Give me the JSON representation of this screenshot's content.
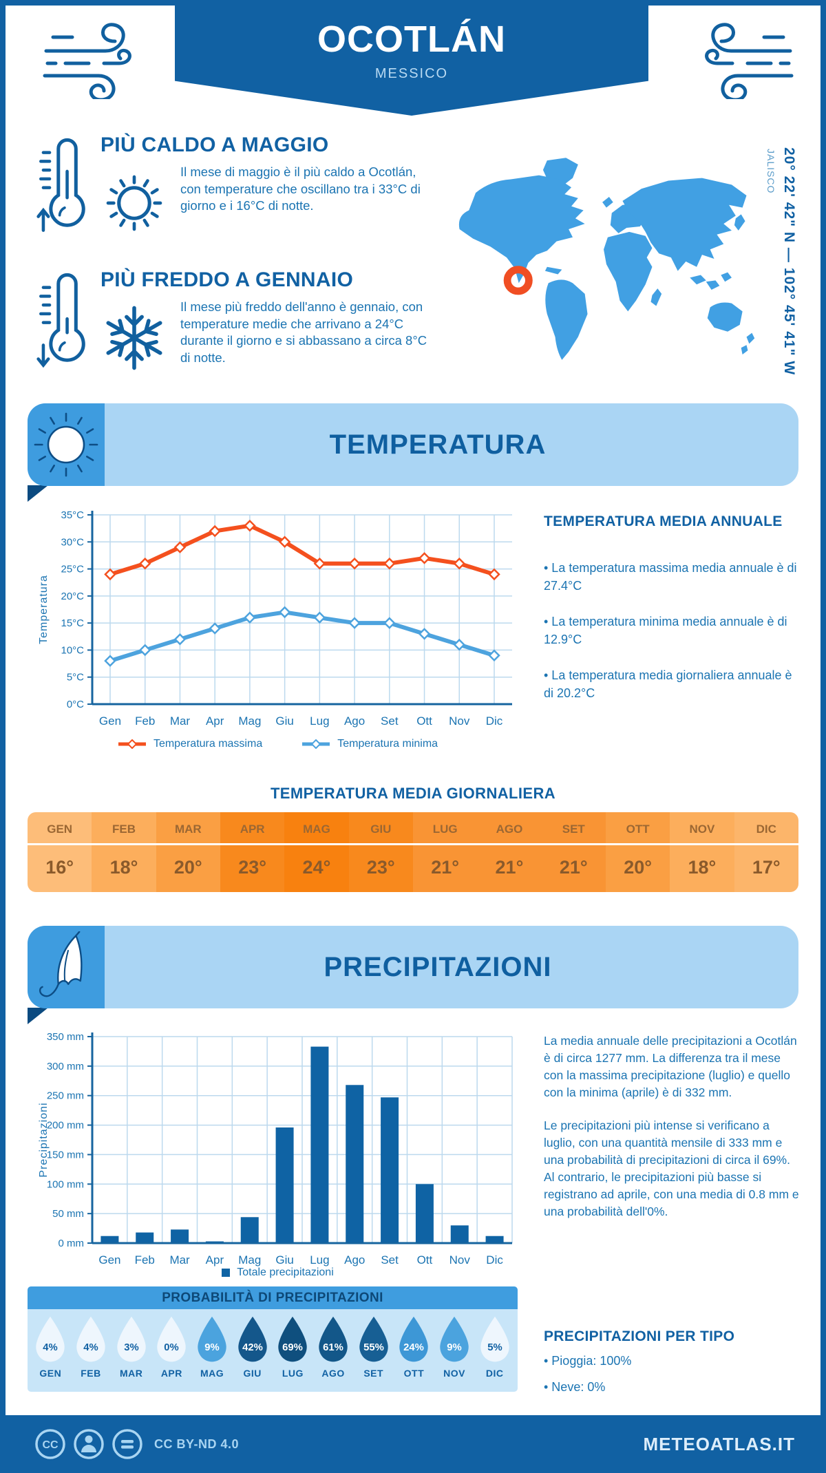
{
  "header": {
    "title": "OCOTLÁN",
    "subtitle": "MESSICO"
  },
  "highlights": {
    "hot": {
      "title": "PIÙ CALDO A MAGGIO",
      "text": "Il mese di maggio è il più caldo a Ocotlán, con temperature che oscillano tra i 33°C di giorno e i 16°C di notte."
    },
    "cold": {
      "title": "PIÙ FREDDO A GENNAIO",
      "text": "Il mese più freddo dell'anno è gennaio, con temperature medie che arrivano a 24°C durante il giorno e si abbassano a circa 8°C di notte."
    }
  },
  "map": {
    "coordinates": "20° 22' 42\" N — 102° 45' 41\" W",
    "region": "JALISCO",
    "marker_color": "#f04e23",
    "land_color": "#41a0e3"
  },
  "temperature_section": {
    "banner": "TEMPERATURA",
    "annual": {
      "title": "TEMPERATURA MEDIA ANNUALE",
      "bullets": [
        "• La temperatura massima media annuale è di 27.4°C",
        "• La temperatura minima media annuale è di 12.9°C",
        "• La temperatura media giornaliera annuale è di 20.2°C"
      ]
    },
    "daily_title": "TEMPERATURA MEDIA GIORNALIERA",
    "daily": {
      "months": [
        "GEN",
        "FEB",
        "MAR",
        "APR",
        "MAG",
        "GIU",
        "LUG",
        "AGO",
        "SET",
        "OTT",
        "NOV",
        "DIC"
      ],
      "values": [
        "16°",
        "18°",
        "20°",
        "23°",
        "24°",
        "23°",
        "21°",
        "21°",
        "21°",
        "20°",
        "18°",
        "17°"
      ],
      "cell_colors": [
        "#fdbd79",
        "#fcae5c",
        "#fa9f43",
        "#f8891d",
        "#f8810f",
        "#f8891d",
        "#f99434",
        "#f99434",
        "#f99434",
        "#fa9f43",
        "#fcae5c",
        "#fcb56a"
      ]
    }
  },
  "precipitation_section": {
    "banner": "PRECIPITAZIONI",
    "paragraphs": [
      "La media annuale delle precipitazioni a Ocotlán è di circa 1277 mm. La differenza tra il mese con la massima precipitazione (luglio) e quello con la minima (aprile) è di 332 mm.",
      "Le precipitazioni più intense si verificano a luglio, con una quantità mensile di 333 mm e una probabilità di precipitazioni di circa il 69%. Al contrario, le precipitazioni più basse si registrano ad aprile, con una media di 0.8 mm e una probabilità dell'0%."
    ],
    "probability": {
      "title": "PROBABILITÀ DI PRECIPITAZIONI",
      "months": [
        "GEN",
        "FEB",
        "MAR",
        "APR",
        "MAG",
        "GIU",
        "LUG",
        "AGO",
        "SET",
        "OTT",
        "NOV",
        "DIC"
      ],
      "values": [
        4,
        4,
        3,
        0,
        9,
        42,
        69,
        61,
        55,
        24,
        9,
        5
      ],
      "drop_colors": [
        "#eef6fd",
        "#eef6fd",
        "#eef6fd",
        "#eef6fd",
        "#4ba3de",
        "#14578b",
        "#0f4f7e",
        "#135789",
        "#175f94",
        "#3d97d6",
        "#4ba3de",
        "#eef6fd"
      ],
      "drop_text_colors": [
        "#1161a3",
        "#1161a3",
        "#1161a3",
        "#1161a3",
        "#ffffff",
        "#ffffff",
        "#ffffff",
        "#ffffff",
        "#ffffff",
        "#ffffff",
        "#ffffff",
        "#1161a3"
      ]
    },
    "types": {
      "title": "PRECIPITAZIONI PER TIPO",
      "bullets": [
        "• Pioggia: 100%",
        "• Neve: 0%"
      ]
    }
  },
  "footer": {
    "license": "CC BY-ND 4.0",
    "site": "METEOATLAS.IT"
  },
  "chart_data": [
    {
      "type": "line",
      "categories": [
        "Gen",
        "Feb",
        "Mar",
        "Apr",
        "Mag",
        "Giu",
        "Lug",
        "Ago",
        "Set",
        "Ott",
        "Nov",
        "Dic"
      ],
      "series": [
        {
          "name": "Temperatura massima",
          "color": "#f4501e",
          "values": [
            24,
            26,
            29,
            32,
            33,
            30,
            26,
            26,
            26,
            27,
            26,
            24
          ]
        },
        {
          "name": "Temperatura minima",
          "color": "#4da3de",
          "values": [
            8,
            10,
            12,
            14,
            16,
            17,
            16,
            15,
            15,
            13,
            11,
            9
          ]
        }
      ],
      "ylabel": "Temperatura",
      "ytick_suffix": "°C",
      "ylim": [
        0,
        35
      ],
      "ystep": 5,
      "grid": true,
      "legend_position": "bottom"
    },
    {
      "type": "bar",
      "categories": [
        "Gen",
        "Feb",
        "Mar",
        "Apr",
        "Mag",
        "Giu",
        "Lug",
        "Ago",
        "Set",
        "Ott",
        "Nov",
        "Dic"
      ],
      "series": [
        {
          "name": "Totale precipitazioni",
          "color": "#0f63a4",
          "values": [
            12,
            18,
            23,
            0.8,
            44,
            196,
            333,
            268,
            247,
            100,
            30,
            12
          ]
        }
      ],
      "ylabel": "Precipitazioni",
      "ytick_suffix": " mm",
      "ylim": [
        0,
        350
      ],
      "ystep": 50,
      "grid": true,
      "legend_position": "bottom"
    }
  ]
}
